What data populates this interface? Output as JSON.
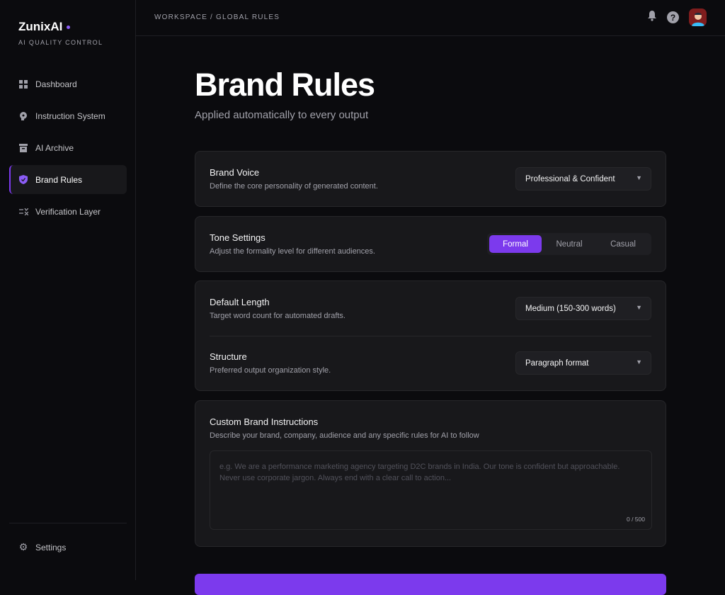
{
  "brand": {
    "name": "ZunixAI",
    "tagline": "AI QUALITY CONTROL"
  },
  "sidebar": {
    "items": [
      {
        "label": "Dashboard",
        "icon": "grid-icon"
      },
      {
        "label": "Instruction System",
        "icon": "brain-icon"
      },
      {
        "label": "AI Archive",
        "icon": "archive-icon"
      },
      {
        "label": "Brand Rules",
        "icon": "shield-check-icon",
        "active": true
      },
      {
        "label": "Verification Layer",
        "icon": "checklist-icon"
      }
    ],
    "settings": "Settings"
  },
  "header": {
    "breadcrumb": "WORKSPACE / GLOBAL RULES"
  },
  "page": {
    "title": "Brand Rules",
    "subtitle": "Applied automatically to every output"
  },
  "brand_voice": {
    "label": "Brand Voice",
    "desc": "Define the core personality of generated content.",
    "value": "Professional & Confident"
  },
  "tone": {
    "label": "Tone Settings",
    "desc": "Adjust the formality level for different audiences.",
    "options": [
      "Formal",
      "Neutral",
      "Casual"
    ],
    "selected": "Formal"
  },
  "length": {
    "label": "Default Length",
    "desc": "Target word count for automated drafts.",
    "value": "Medium (150-300 words)"
  },
  "structure": {
    "label": "Structure",
    "desc": "Preferred output organization style.",
    "value": "Paragraph format"
  },
  "custom": {
    "label": "Custom Brand Instructions",
    "desc": "Describe your brand, company, audience and any specific rules for AI to follow",
    "placeholder": "e.g. We are a performance marketing agency targeting D2C brands in India. Our tone is confident but approachable. Never use corporate jargon. Always end with a clear call to action...",
    "value": "",
    "count": "0 / 500"
  },
  "colors": {
    "accent": "#7c3aed",
    "background": "#0b0b0e",
    "card": "#18181b"
  }
}
